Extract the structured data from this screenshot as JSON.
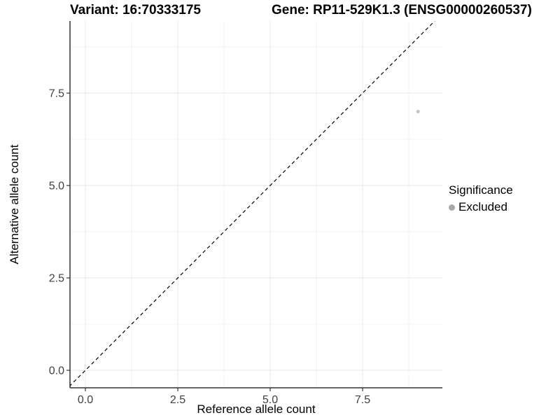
{
  "chart_data": {
    "type": "scatter",
    "titles": {
      "variant": "Variant: 16:70333175",
      "gene": "Gene: RP11-529K1.3 (ENSG00000260537)"
    },
    "xlabel": "Reference allele count",
    "ylabel": "Alternative allele count",
    "xlim": [
      -0.45,
      9.65
    ],
    "ylim": [
      -0.45,
      9.45
    ],
    "xticks": {
      "values": [
        0,
        2.5,
        5,
        7.5
      ],
      "labels": [
        "0.0",
        "2.5",
        "5.0",
        "7.5"
      ]
    },
    "yticks": {
      "values": [
        0,
        2.5,
        5,
        7.5
      ],
      "labels": [
        "0.0",
        "2.5",
        "5.0",
        "7.5"
      ]
    },
    "minor_ticks": {
      "x": [
        1.25,
        3.75,
        6.25,
        8.75
      ],
      "y": [
        1.25,
        3.75,
        6.25,
        8.75
      ]
    },
    "grid": {
      "on": true,
      "major_color": "#e7e7e7",
      "minor_color": "#f3f3f3"
    },
    "axis": {
      "line_color": "#333333",
      "tick_color": "#333333",
      "tick_label_color": "#404040"
    },
    "reference_line": {
      "kind": "identity y=x",
      "style": "dashed",
      "color": "#000000"
    },
    "series": [
      {
        "name": "Excluded",
        "color": "#c3c3c3",
        "points": [
          [
            9,
            7
          ]
        ]
      }
    ],
    "legend": {
      "title": "Significance",
      "position": "right",
      "entries": [
        {
          "label": "Excluded",
          "marker_color": "#a8a8a8"
        }
      ]
    }
  }
}
